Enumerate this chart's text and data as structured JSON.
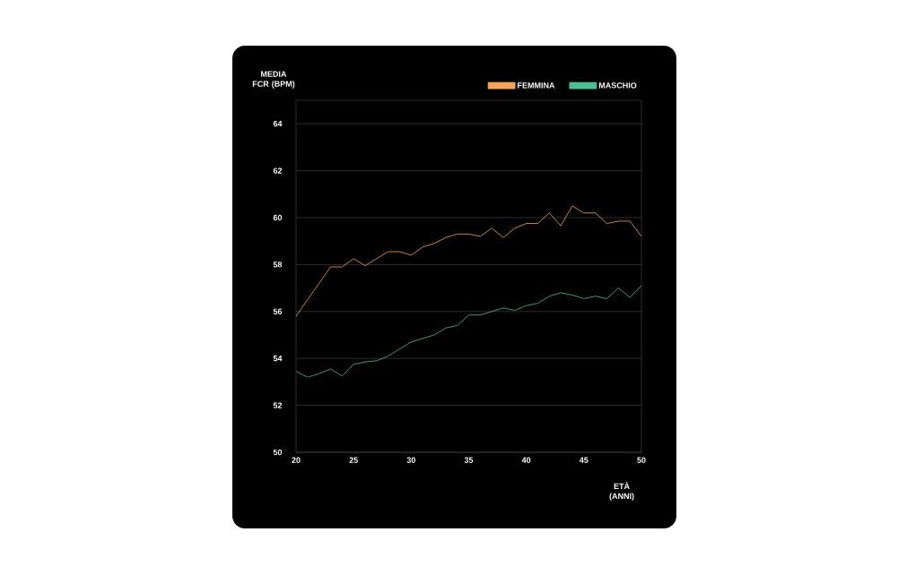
{
  "chart_data": {
    "type": "line",
    "xlabel": "ETÀ (ANNI)",
    "ylabel": "MEDIA FCR (BPM)",
    "x": [
      20,
      21,
      22,
      23,
      24,
      25,
      26,
      27,
      28,
      29,
      30,
      31,
      32,
      33,
      34,
      35,
      36,
      37,
      38,
      39,
      40,
      41,
      42,
      43,
      44,
      45,
      46,
      47,
      48,
      49,
      50
    ],
    "series": [
      {
        "name": "FEMMINA",
        "color": "#f5a35c",
        "values": [
          55.8,
          56.5,
          57.2,
          57.9,
          57.9,
          58.25,
          57.95,
          58.25,
          58.55,
          58.55,
          58.4,
          58.75,
          58.9,
          59.15,
          59.3,
          59.3,
          59.2,
          59.55,
          59.15,
          59.55,
          59.75,
          59.75,
          60.2,
          59.65,
          60.5,
          60.2,
          60.2,
          59.75,
          59.85,
          59.85,
          59.2
        ]
      },
      {
        "name": "MASCHIO",
        "color": "#4dbf95",
        "values": [
          53.45,
          53.2,
          53.35,
          53.55,
          53.25,
          53.75,
          53.85,
          53.9,
          54.1,
          54.4,
          54.7,
          54.85,
          55.0,
          55.3,
          55.4,
          55.85,
          55.85,
          56.0,
          56.15,
          56.05,
          56.25,
          56.35,
          56.65,
          56.8,
          56.7,
          56.55,
          56.65,
          56.55,
          57.0,
          56.6,
          57.1
        ]
      }
    ],
    "xlim": [
      20,
      50
    ],
    "ylim": [
      50,
      65
    ],
    "xticks": [
      20,
      25,
      30,
      35,
      40,
      45,
      50
    ],
    "yticks": [
      50,
      52,
      54,
      56,
      58,
      60,
      62,
      64
    ],
    "grid": "y",
    "legend": "top right",
    "marker": "none",
    "line_style": "solid"
  }
}
